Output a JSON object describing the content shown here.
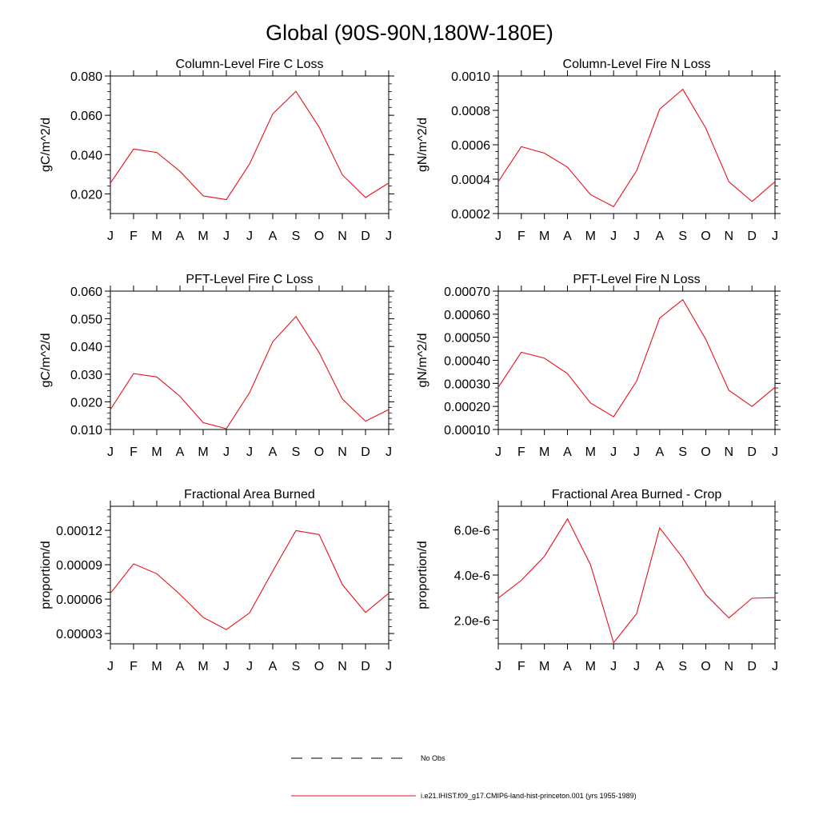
{
  "title": "Global (90S-90N,180W-180E)",
  "line_color": "#e8121c",
  "chart_data": [
    {
      "type": "line",
      "title": "Column-Level Fire C Loss",
      "ylabel": "gC/m^2/d",
      "categories": [
        "J",
        "F",
        "M",
        "A",
        "M",
        "J",
        "J",
        "A",
        "S",
        "O",
        "N",
        "D",
        "J"
      ],
      "ylim": [
        0.01,
        0.08
      ],
      "yticks": [
        "0.020",
        "0.040",
        "0.060",
        "0.080"
      ],
      "ytick_values": [
        0.02,
        0.04,
        0.06,
        0.08
      ],
      "ytick_minor": 0.004,
      "values": [
        0.0255,
        0.0428,
        0.0411,
        0.0315,
        0.019,
        0.0171,
        0.0352,
        0.0607,
        0.0722,
        0.054,
        0.0297,
        0.0182,
        0.0255
      ]
    },
    {
      "type": "line",
      "title": "Column-Level Fire N Loss",
      "ylabel": "gN/m^2/d",
      "categories": [
        "J",
        "F",
        "M",
        "A",
        "M",
        "J",
        "J",
        "A",
        "S",
        "O",
        "N",
        "D",
        "J"
      ],
      "ylim": [
        0.0002,
        0.001
      ],
      "yticks": [
        "0.0002",
        "0.0004",
        "0.0006",
        "0.0008",
        "0.0010"
      ],
      "ytick_values": [
        0.0002,
        0.0004,
        0.0006,
        0.0008,
        0.001
      ],
      "ytick_minor": 4e-05,
      "values": [
        0.000385,
        0.000589,
        0.000551,
        0.00047,
        0.00031,
        0.00024,
        0.00045,
        0.000807,
        0.000923,
        0.000696,
        0.000385,
        0.00027,
        0.000385
      ]
    },
    {
      "type": "line",
      "title": "PFT-Level Fire C Loss",
      "ylabel": "gC/m^2/d",
      "categories": [
        "J",
        "F",
        "M",
        "A",
        "M",
        "J",
        "J",
        "A",
        "S",
        "O",
        "N",
        "D",
        "J"
      ],
      "ylim": [
        0.01,
        0.06
      ],
      "yticks": [
        "0.010",
        "0.020",
        "0.030",
        "0.040",
        "0.050",
        "0.060"
      ],
      "ytick_values": [
        0.01,
        0.02,
        0.03,
        0.04,
        0.05,
        0.06
      ],
      "ytick_minor": 0.002,
      "values": [
        0.0172,
        0.0302,
        0.029,
        0.022,
        0.0125,
        0.0103,
        0.0233,
        0.0417,
        0.0508,
        0.0378,
        0.021,
        0.013,
        0.0172
      ]
    },
    {
      "type": "line",
      "title": "PFT-Level Fire N Loss",
      "ylabel": "gN/m^2/d",
      "categories": [
        "J",
        "F",
        "M",
        "A",
        "M",
        "J",
        "J",
        "A",
        "S",
        "O",
        "N",
        "D",
        "J"
      ],
      "ylim": [
        0.0001,
        0.0007
      ],
      "yticks": [
        "0.00010",
        "0.00020",
        "0.00030",
        "0.00040",
        "0.00050",
        "0.00060",
        "0.00070"
      ],
      "ytick_values": [
        0.0001,
        0.0002,
        0.0003,
        0.0004,
        0.0005,
        0.0006,
        0.0007
      ],
      "ytick_minor": 2e-05,
      "values": [
        0.000283,
        0.000435,
        0.000409,
        0.000342,
        0.000215,
        0.000155,
        0.00031,
        0.000583,
        0.000663,
        0.000491,
        0.00027,
        0.0002,
        0.000283
      ]
    },
    {
      "type": "line",
      "title": "Fractional Area Burned",
      "ylabel": "proportion/d",
      "categories": [
        "J",
        "F",
        "M",
        "A",
        "M",
        "J",
        "J",
        "A",
        "S",
        "O",
        "N",
        "D",
        "J"
      ],
      "ylim": [
        2.1e-05,
        0.000141
      ],
      "yticks": [
        "0.00003",
        "0.00006",
        "0.00009",
        "0.00012"
      ],
      "ytick_values": [
        3e-05,
        6e-05,
        9e-05,
        0.00012
      ],
      "ytick_minor": 6e-06,
      "values": [
        6.51e-05,
        9.08e-05,
        8.22e-05,
        6.42e-05,
        4.41e-05,
        3.34e-05,
        4.8e-05,
        8.45e-05,
        0.0001198,
        0.0001164,
        7.27e-05,
        4.84e-05,
        6.51e-05
      ]
    },
    {
      "type": "line",
      "title": "Fractional Area Burned - Crop",
      "ylabel": "proportion/d",
      "categories": [
        "J",
        "F",
        "M",
        "A",
        "M",
        "J",
        "J",
        "A",
        "S",
        "O",
        "N",
        "D",
        "J"
      ],
      "ylim": [
        9.5e-07,
        7.05e-06
      ],
      "yticks": [
        "2.0e-6",
        "4.0e-6",
        "6.0e-6"
      ],
      "ytick_values": [
        2e-06,
        4e-06,
        6e-06
      ],
      "ytick_minor": 4e-07,
      "values": [
        2.98e-06,
        3.77e-06,
        4.83e-06,
        6.49e-06,
        4.46e-06,
        1e-06,
        2.29e-06,
        6.09e-06,
        4.76e-06,
        3.13e-06,
        2.1e-06,
        2.97e-06,
        3e-06
      ]
    }
  ],
  "legend": {
    "entries": [
      {
        "label": "No Obs",
        "style": "dashed",
        "color": "#000000"
      },
      {
        "label": "i.e21.IHIST.f09_g17.CMIP6-land-hist-princeton.001 (yrs 1955-1989)",
        "style": "solid",
        "color": "#e8121c"
      }
    ]
  }
}
